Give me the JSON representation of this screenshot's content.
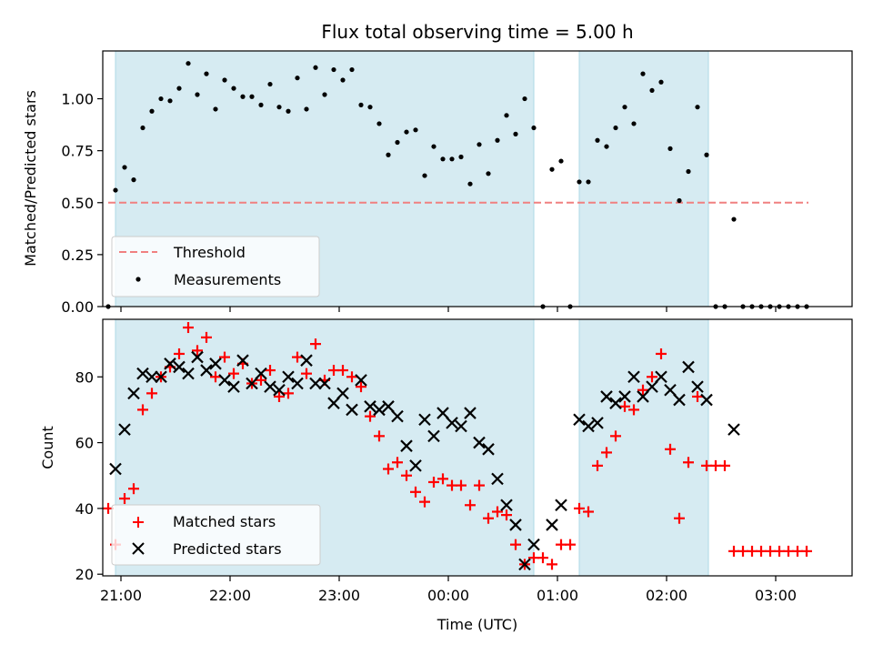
{
  "chart_data": [
    {
      "type": "scatter",
      "title": "Flux total observing time = 5.00 h",
      "ylabel": "Matched/Predicted stars",
      "xlabel": "",
      "ylim": [
        0,
        1.23
      ],
      "xlim": [
        "20:50",
        "03:42"
      ],
      "x_unit": "time (UTC)",
      "shaded_intervals": [
        [
          "20:57",
          "00:47"
        ],
        [
          "01:12",
          "02:23"
        ]
      ],
      "shade_color": "#add8e6",
      "y_ticks": [
        "0.00",
        "0.25",
        "0.50",
        "0.75",
        "1.00"
      ],
      "grid": false,
      "legend_position": "lower-left",
      "series": [
        {
          "name": "Threshold",
          "kind": "line",
          "style": "dashed",
          "color": "#f08080",
          "x": [
            "20:53",
            "03:18"
          ],
          "y": [
            0.5,
            0.5
          ]
        },
        {
          "name": "Measurements",
          "kind": "scatter",
          "color": "#000000",
          "points": [
            [
              "20:53",
              0.0
            ],
            [
              "20:57",
              0.56
            ],
            [
              "21:02",
              0.67
            ],
            [
              "21:07",
              0.61
            ],
            [
              "21:12",
              0.86
            ],
            [
              "21:17",
              0.94
            ],
            [
              "21:22",
              1.0
            ],
            [
              "21:27",
              0.99
            ],
            [
              "21:32",
              1.05
            ],
            [
              "21:37",
              1.17
            ],
            [
              "21:42",
              1.02
            ],
            [
              "21:47",
              1.12
            ],
            [
              "21:52",
              0.95
            ],
            [
              "21:57",
              1.09
            ],
            [
              "22:02",
              1.05
            ],
            [
              "22:07",
              1.01
            ],
            [
              "22:12",
              1.01
            ],
            [
              "22:17",
              0.97
            ],
            [
              "22:22",
              1.07
            ],
            [
              "22:27",
              0.96
            ],
            [
              "22:32",
              0.94
            ],
            [
              "22:37",
              1.1
            ],
            [
              "22:42",
              0.95
            ],
            [
              "22:47",
              1.15
            ],
            [
              "22:52",
              1.02
            ],
            [
              "22:57",
              1.14
            ],
            [
              "23:02",
              1.09
            ],
            [
              "23:07",
              1.14
            ],
            [
              "23:12",
              0.97
            ],
            [
              "23:17",
              0.96
            ],
            [
              "23:22",
              0.88
            ],
            [
              "23:27",
              0.73
            ],
            [
              "23:32",
              0.79
            ],
            [
              "23:37",
              0.84
            ],
            [
              "23:42",
              0.85
            ],
            [
              "23:47",
              0.63
            ],
            [
              "23:52",
              0.77
            ],
            [
              "23:57",
              0.71
            ],
            [
              "00:02",
              0.71
            ],
            [
              "00:07",
              0.72
            ],
            [
              "00:12",
              0.59
            ],
            [
              "00:17",
              0.78
            ],
            [
              "00:22",
              0.64
            ],
            [
              "00:27",
              0.8
            ],
            [
              "00:32",
              0.92
            ],
            [
              "00:37",
              0.83
            ],
            [
              "00:42",
              1.0
            ],
            [
              "00:47",
              0.86
            ],
            [
              "00:52",
              0.0
            ],
            [
              "00:57",
              0.66
            ],
            [
              "01:02",
              0.7
            ],
            [
              "01:07",
              0.0
            ],
            [
              "01:12",
              0.6
            ],
            [
              "01:17",
              0.6
            ],
            [
              "01:22",
              0.8
            ],
            [
              "01:27",
              0.77
            ],
            [
              "01:32",
              0.86
            ],
            [
              "01:37",
              0.96
            ],
            [
              "01:42",
              0.88
            ],
            [
              "01:47",
              1.12
            ],
            [
              "01:52",
              1.04
            ],
            [
              "01:57",
              1.08
            ],
            [
              "02:02",
              0.76
            ],
            [
              "02:07",
              0.51
            ],
            [
              "02:12",
              0.65
            ],
            [
              "02:17",
              0.96
            ],
            [
              "02:22",
              0.73
            ],
            [
              "02:27",
              0.0
            ],
            [
              "02:32",
              0.0
            ],
            [
              "02:37",
              0.42
            ],
            [
              "02:42",
              0.0
            ],
            [
              "02:47",
              0.0
            ],
            [
              "02:52",
              0.0
            ],
            [
              "02:57",
              0.0
            ],
            [
              "03:02",
              0.0
            ],
            [
              "03:07",
              0.0
            ],
            [
              "03:12",
              0.0
            ],
            [
              "03:17",
              0.0
            ]
          ]
        }
      ]
    },
    {
      "type": "scatter",
      "title": "",
      "xlabel": "Time (UTC)",
      "ylabel": "Count",
      "ylim": [
        19.5,
        97.5
      ],
      "xlim": [
        "20:50",
        "03:42"
      ],
      "x_ticks": [
        "21:00",
        "22:00",
        "23:00",
        "00:00",
        "01:00",
        "02:00",
        "03:00"
      ],
      "y_ticks": [
        "20",
        "40",
        "60",
        "80"
      ],
      "shaded_intervals": [
        [
          "20:57",
          "00:47"
        ],
        [
          "01:12",
          "02:23"
        ]
      ],
      "shade_color": "#add8e6",
      "grid": false,
      "legend_position": "lower-left",
      "series": [
        {
          "name": "Matched stars",
          "marker": "plus",
          "color": "#ff0000",
          "points": [
            [
              "20:53",
              40
            ],
            [
              "20:57",
              29
            ],
            [
              "21:02",
              43
            ],
            [
              "21:07",
              46
            ],
            [
              "21:12",
              70
            ],
            [
              "21:17",
              75
            ],
            [
              "21:22",
              80
            ],
            [
              "21:27",
              83
            ],
            [
              "21:32",
              87
            ],
            [
              "21:37",
              95
            ],
            [
              "21:42",
              88
            ],
            [
              "21:47",
              92
            ],
            [
              "21:52",
              80
            ],
            [
              "21:57",
              86
            ],
            [
              "22:02",
              81
            ],
            [
              "22:07",
              84
            ],
            [
              "22:12",
              78
            ],
            [
              "22:17",
              79
            ],
            [
              "22:22",
              82
            ],
            [
              "22:27",
              74
            ],
            [
              "22:32",
              75
            ],
            [
              "22:37",
              86
            ],
            [
              "22:42",
              81
            ],
            [
              "22:47",
              90
            ],
            [
              "22:52",
              79
            ],
            [
              "22:57",
              82
            ],
            [
              "23:02",
              82
            ],
            [
              "23:07",
              80
            ],
            [
              "23:12",
              77
            ],
            [
              "23:17",
              68
            ],
            [
              "23:22",
              62
            ],
            [
              "23:27",
              52
            ],
            [
              "23:32",
              54
            ],
            [
              "23:37",
              50
            ],
            [
              "23:42",
              45
            ],
            [
              "23:47",
              42
            ],
            [
              "23:52",
              48
            ],
            [
              "23:57",
              49
            ],
            [
              "00:02",
              47
            ],
            [
              "00:07",
              47
            ],
            [
              "00:12",
              41
            ],
            [
              "00:17",
              47
            ],
            [
              "00:22",
              37
            ],
            [
              "00:27",
              39
            ],
            [
              "00:32",
              38
            ],
            [
              "00:37",
              29
            ],
            [
              "00:42",
              23
            ],
            [
              "00:47",
              25
            ],
            [
              "00:52",
              25
            ],
            [
              "00:57",
              23
            ],
            [
              "01:02",
              29
            ],
            [
              "01:07",
              29
            ],
            [
              "01:12",
              40
            ],
            [
              "01:17",
              39
            ],
            [
              "01:22",
              53
            ],
            [
              "01:27",
              57
            ],
            [
              "01:32",
              62
            ],
            [
              "01:37",
              71
            ],
            [
              "01:42",
              70
            ],
            [
              "01:47",
              76
            ],
            [
              "01:52",
              80
            ],
            [
              "01:57",
              87
            ],
            [
              "02:02",
              58
            ],
            [
              "02:07",
              37
            ],
            [
              "02:12",
              54
            ],
            [
              "02:17",
              74
            ],
            [
              "02:22",
              53
            ],
            [
              "02:27",
              53
            ],
            [
              "02:32",
              53
            ],
            [
              "02:37",
              27
            ],
            [
              "02:42",
              27
            ],
            [
              "02:47",
              27
            ],
            [
              "02:52",
              27
            ],
            [
              "02:57",
              27
            ],
            [
              "03:02",
              27
            ],
            [
              "03:07",
              27
            ],
            [
              "03:12",
              27
            ],
            [
              "03:17",
              27
            ]
          ]
        },
        {
          "name": "Predicted stars",
          "marker": "x",
          "color": "#000000",
          "points": [
            [
              "20:57",
              52
            ],
            [
              "21:02",
              64
            ],
            [
              "21:07",
              75
            ],
            [
              "21:12",
              81
            ],
            [
              "21:17",
              80
            ],
            [
              "21:22",
              80
            ],
            [
              "21:27",
              84
            ],
            [
              "21:32",
              83
            ],
            [
              "21:37",
              81
            ],
            [
              "21:42",
              86
            ],
            [
              "21:47",
              82
            ],
            [
              "21:52",
              84
            ],
            [
              "21:57",
              79
            ],
            [
              "22:02",
              77
            ],
            [
              "22:07",
              85
            ],
            [
              "22:12",
              78
            ],
            [
              "22:17",
              81
            ],
            [
              "22:22",
              77
            ],
            [
              "22:27",
              76
            ],
            [
              "22:32",
              80
            ],
            [
              "22:37",
              78
            ],
            [
              "22:42",
              85
            ],
            [
              "22:47",
              78
            ],
            [
              "22:52",
              78
            ],
            [
              "22:57",
              72
            ],
            [
              "23:02",
              75
            ],
            [
              "23:07",
              70
            ],
            [
              "23:12",
              79
            ],
            [
              "23:17",
              71
            ],
            [
              "23:22",
              70
            ],
            [
              "23:27",
              71
            ],
            [
              "23:32",
              68
            ],
            [
              "23:37",
              59
            ],
            [
              "23:42",
              53
            ],
            [
              "23:47",
              67
            ],
            [
              "23:52",
              62
            ],
            [
              "23:57",
              69
            ],
            [
              "00:02",
              66
            ],
            [
              "00:07",
              65
            ],
            [
              "00:12",
              69
            ],
            [
              "00:17",
              60
            ],
            [
              "00:22",
              58
            ],
            [
              "00:27",
              49
            ],
            [
              "00:32",
              41
            ],
            [
              "00:37",
              35
            ],
            [
              "00:42",
              23
            ],
            [
              "00:47",
              29
            ],
            [
              "00:57",
              35
            ],
            [
              "01:02",
              41
            ],
            [
              "01:12",
              67
            ],
            [
              "01:17",
              65
            ],
            [
              "01:22",
              66
            ],
            [
              "01:27",
              74
            ],
            [
              "01:32",
              72
            ],
            [
              "01:37",
              74
            ],
            [
              "01:42",
              80
            ],
            [
              "01:47",
              74
            ],
            [
              "01:52",
              77
            ],
            [
              "01:57",
              80
            ],
            [
              "02:02",
              76
            ],
            [
              "02:07",
              73
            ],
            [
              "02:12",
              83
            ],
            [
              "02:17",
              77
            ],
            [
              "02:22",
              73
            ],
            [
              "02:37",
              64
            ]
          ]
        }
      ]
    }
  ]
}
